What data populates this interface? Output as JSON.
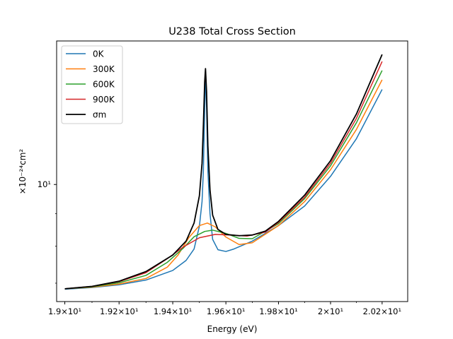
{
  "chart_data": {
    "type": "line",
    "title": "U238 Total Cross Section",
    "xlabel": "Energy (eV)",
    "ylabel": "×10⁻²⁴cm²",
    "x_scale": "log",
    "y_scale": "log",
    "xlim": [
      18.97,
      20.3
    ],
    "ylim": [
      6.55,
      16.8
    ],
    "x_ticks": [
      {
        "value": 19.0,
        "label": "1.9×10¹"
      },
      {
        "value": 19.2,
        "label": "1.92×10¹"
      },
      {
        "value": 19.4,
        "label": "1.94×10¹"
      },
      {
        "value": 19.6,
        "label": "1.96×10¹"
      },
      {
        "value": 19.8,
        "label": "1.98×10¹"
      },
      {
        "value": 20.0,
        "label": "2×10¹"
      },
      {
        "value": 20.2,
        "label": "2.02×10¹"
      }
    ],
    "y_ticks": [
      {
        "value": 10,
        "label": "10¹"
      }
    ],
    "legend_position": "top-left",
    "series": [
      {
        "name": "0K",
        "color": "#1f77b4",
        "points": [
          [
            19.0,
            6.85
          ],
          [
            19.1,
            6.89
          ],
          [
            19.2,
            6.96
          ],
          [
            19.3,
            7.08
          ],
          [
            19.4,
            7.33
          ],
          [
            19.45,
            7.6
          ],
          [
            19.48,
            7.92
          ],
          [
            19.5,
            8.6
          ],
          [
            19.51,
            9.4
          ],
          [
            19.515,
            10.5
          ],
          [
            19.52,
            13.2
          ],
          [
            19.523,
            15.0
          ],
          [
            19.527,
            13.2
          ],
          [
            19.532,
            10.5
          ],
          [
            19.54,
            9.0
          ],
          [
            19.55,
            8.2
          ],
          [
            19.57,
            7.9
          ],
          [
            19.6,
            7.85
          ],
          [
            19.63,
            7.92
          ],
          [
            19.7,
            8.15
          ],
          [
            19.8,
            8.62
          ],
          [
            19.9,
            9.25
          ],
          [
            20.0,
            10.3
          ],
          [
            20.1,
            11.8
          ],
          [
            20.2,
            14.1
          ]
        ]
      },
      {
        "name": "300K",
        "color": "#ff7f0e",
        "points": [
          [
            19.0,
            6.86
          ],
          [
            19.1,
            6.9
          ],
          [
            19.2,
            6.98
          ],
          [
            19.3,
            7.12
          ],
          [
            19.38,
            7.42
          ],
          [
            19.42,
            7.75
          ],
          [
            19.46,
            8.25
          ],
          [
            19.5,
            8.62
          ],
          [
            19.53,
            8.7
          ],
          [
            19.56,
            8.58
          ],
          [
            19.6,
            8.27
          ],
          [
            19.65,
            8.05
          ],
          [
            19.7,
            8.1
          ],
          [
            19.8,
            8.62
          ],
          [
            19.9,
            9.4
          ],
          [
            20.0,
            10.55
          ],
          [
            20.1,
            12.2
          ],
          [
            20.2,
            14.6
          ]
        ]
      },
      {
        "name": "600K",
        "color": "#2ca02c",
        "points": [
          [
            19.0,
            6.86
          ],
          [
            19.1,
            6.91
          ],
          [
            19.2,
            7.01
          ],
          [
            19.3,
            7.2
          ],
          [
            19.38,
            7.55
          ],
          [
            19.44,
            7.95
          ],
          [
            19.48,
            8.28
          ],
          [
            19.52,
            8.44
          ],
          [
            19.55,
            8.48
          ],
          [
            19.6,
            8.38
          ],
          [
            19.65,
            8.23
          ],
          [
            19.7,
            8.22
          ],
          [
            19.8,
            8.68
          ],
          [
            19.9,
            9.5
          ],
          [
            20.0,
            10.7
          ],
          [
            20.1,
            12.5
          ],
          [
            20.2,
            15.1
          ]
        ]
      },
      {
        "name": "900K",
        "color": "#d62728",
        "points": [
          [
            19.0,
            6.86
          ],
          [
            19.1,
            6.92
          ],
          [
            19.2,
            7.04
          ],
          [
            19.3,
            7.27
          ],
          [
            19.38,
            7.65
          ],
          [
            19.44,
            7.98
          ],
          [
            19.5,
            8.25
          ],
          [
            19.56,
            8.35
          ],
          [
            19.62,
            8.33
          ],
          [
            19.68,
            8.3
          ],
          [
            19.75,
            8.42
          ],
          [
            19.8,
            8.72
          ],
          [
            19.9,
            9.55
          ],
          [
            20.0,
            10.8
          ],
          [
            20.1,
            12.7
          ],
          [
            20.2,
            15.6
          ]
        ]
      },
      {
        "name": "σm",
        "color": "#000000",
        "points": [
          [
            19.0,
            6.86
          ],
          [
            19.1,
            6.92
          ],
          [
            19.2,
            7.05
          ],
          [
            19.3,
            7.3
          ],
          [
            19.4,
            7.75
          ],
          [
            19.45,
            8.15
          ],
          [
            19.48,
            8.7
          ],
          [
            19.5,
            9.6
          ],
          [
            19.51,
            10.8
          ],
          [
            19.515,
            12.4
          ],
          [
            19.52,
            14.5
          ],
          [
            19.523,
            15.2
          ],
          [
            19.527,
            14.0
          ],
          [
            19.532,
            11.5
          ],
          [
            19.54,
            9.8
          ],
          [
            19.55,
            8.95
          ],
          [
            19.57,
            8.5
          ],
          [
            19.6,
            8.35
          ],
          [
            19.65,
            8.31
          ],
          [
            19.7,
            8.33
          ],
          [
            19.75,
            8.45
          ],
          [
            19.8,
            8.75
          ],
          [
            19.9,
            9.62
          ],
          [
            20.0,
            10.9
          ],
          [
            20.1,
            12.9
          ],
          [
            20.2,
            16.0
          ]
        ]
      }
    ]
  }
}
